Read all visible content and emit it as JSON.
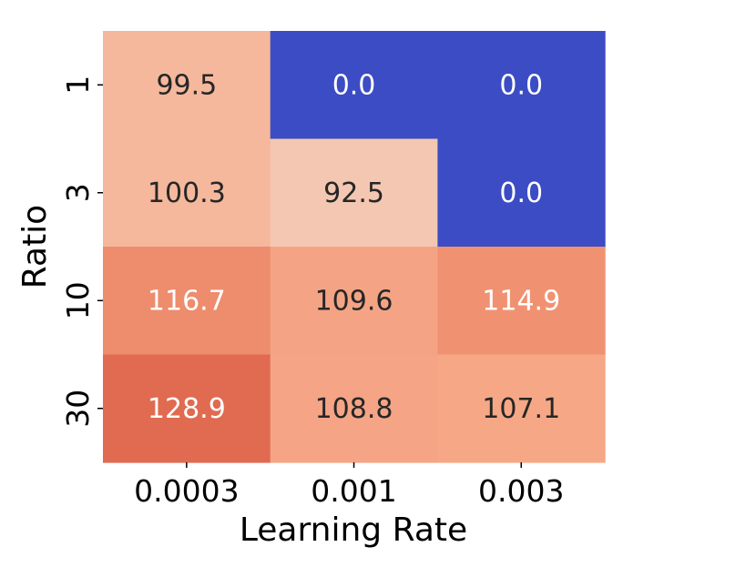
{
  "chart_data": {
    "type": "heatmap",
    "xlabel": "Learning Rate",
    "ylabel": "Ratio",
    "x_categories": [
      "0.0003",
      "0.001",
      "0.003"
    ],
    "y_categories": [
      "1",
      "3",
      "10",
      "30"
    ],
    "values": [
      [
        99.5,
        0.0,
        0.0
      ],
      [
        100.3,
        92.5,
        0.0
      ],
      [
        116.7,
        109.6,
        114.9
      ],
      [
        128.9,
        108.8,
        107.1
      ]
    ],
    "cell_labels": [
      [
        "99.5",
        "0.0",
        "0.0"
      ],
      [
        "100.3",
        "92.5",
        "0.0"
      ],
      [
        "116.7",
        "109.6",
        "114.9"
      ],
      [
        "128.9",
        "108.8",
        "107.1"
      ]
    ],
    "colors": [
      [
        "#f5b89c",
        "#3c4cc4",
        "#3c4cc4"
      ],
      [
        "#f5b89c",
        "#f3c7b1",
        "#3c4cc4"
      ],
      [
        "#ee8c6e",
        "#f4a484",
        "#f09272"
      ],
      [
        "#e06b50",
        "#f5a486",
        "#f6a886"
      ]
    ],
    "label_colors": [
      [
        "#262626",
        "#ffffff",
        "#ffffff"
      ],
      [
        "#262626",
        "#262626",
        "#ffffff"
      ],
      [
        "#ffffff",
        "#262626",
        "#ffffff"
      ],
      [
        "#ffffff",
        "#262626",
        "#262626"
      ]
    ],
    "colorbar": false
  }
}
